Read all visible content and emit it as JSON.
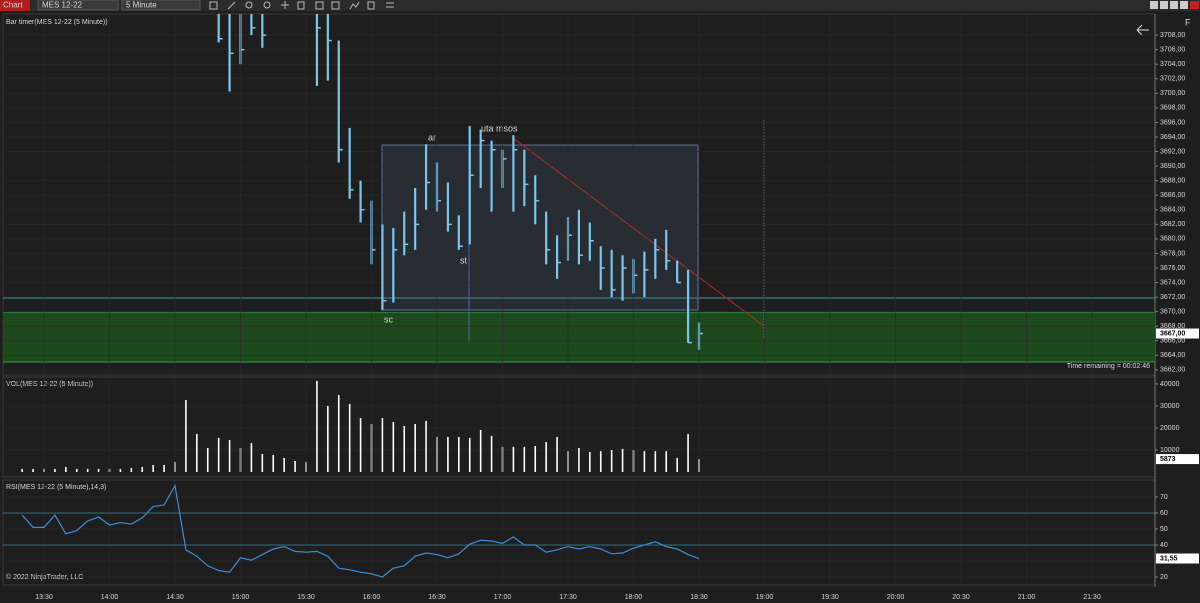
{
  "toolbar": {
    "title": "Chart",
    "instrument": "MES 12-22",
    "interval": "5 Minute",
    "corner": "F"
  },
  "footer": "© 2022 NinjaTrader, LLC",
  "chart_data": [
    {
      "type": "ohlc",
      "title": "Bar timer(MES 12-22 (5 Minute))",
      "timer": "Time remaining = 00:02:46",
      "annotations": [
        "ar",
        "st",
        "uta msos",
        "sc"
      ],
      "color": "#7cc6ee",
      "grid": true,
      "x": [
        "14:50",
        "14:55",
        "15:00",
        "15:05",
        "15:10",
        "15:35",
        "15:40",
        "15:45",
        "15:50",
        "15:55",
        "16:00",
        "16:05",
        "16:10",
        "16:15",
        "16:20",
        "16:25",
        "16:30",
        "16:35",
        "16:40",
        "16:45",
        "16:50",
        "16:55",
        "17:00",
        "17:05",
        "17:10",
        "17:15",
        "17:20",
        "17:25",
        "17:30",
        "17:35",
        "17:40",
        "17:45",
        "17:50",
        "17:55",
        "18:00",
        "18:05",
        "18:10",
        "18:15",
        "18:20",
        "18:25",
        "18:30"
      ],
      "high": [
        3711,
        3711,
        3711,
        3711,
        3711,
        3711,
        3711,
        3707.25,
        3695.25,
        3688,
        3685.25,
        3682,
        3681.5,
        3683.75,
        3687,
        3693,
        3690.5,
        3687.75,
        3683.25,
        3695.5,
        3695,
        3693.5,
        3692.25,
        3694.25,
        3692.25,
        3688.75,
        3683.75,
        3680.5,
        3683,
        3684,
        3682.25,
        3679,
        3678.5,
        3677.75,
        3677.25,
        3678.25,
        3680,
        3681.25,
        3677,
        3675.75,
        3668.5
      ],
      "low": [
        3707,
        3700.25,
        3704,
        3708,
        3706.25,
        3701,
        3701.75,
        3690.5,
        3685.5,
        3682.25,
        3676.5,
        3670.25,
        3671.25,
        3677.75,
        3678.5,
        3684,
        3683.75,
        3681,
        3678.5,
        3679.25,
        3687,
        3683.75,
        3687,
        3683.75,
        3684.5,
        3682,
        3676.5,
        3674.5,
        3677,
        3676.5,
        3677,
        3673,
        3672,
        3671.5,
        3672.5,
        3672,
        3674.5,
        3675.75,
        3674,
        3665.75,
        3664.75
      ],
      "close": [
        3707.5,
        3705.5,
        3706,
        3709,
        3708,
        3709,
        3707.25,
        3692.25,
        3686.75,
        3684,
        3678.5,
        3671.5,
        3678.5,
        3679.25,
        3682,
        3687.75,
        3685.25,
        3682,
        3679,
        3688.75,
        3693.5,
        3692.25,
        3691,
        3692.25,
        3687.5,
        3685.25,
        3678.5,
        3676.75,
        3680.5,
        3677.75,
        3679.75,
        3676,
        3673,
        3676,
        3675,
        3675.75,
        3678.5,
        3677,
        3674,
        3665.75,
        3667
      ],
      "current": {
        "value": 3667,
        "label": "3667,00"
      },
      "ylim": [
        3661.3,
        3710.9
      ],
      "yticks": [
        {
          "value": 3662,
          "label": "3662,00"
        },
        {
          "value": 3664,
          "label": "3664,00"
        },
        {
          "value": 3666,
          "label": "3666,00"
        },
        {
          "value": 3668,
          "label": "3668,00"
        },
        {
          "value": 3670,
          "label": "3670,00"
        },
        {
          "value": 3672,
          "label": "3672,00"
        },
        {
          "value": 3674,
          "label": "3674,00"
        },
        {
          "value": 3676,
          "label": "3676,00"
        },
        {
          "value": 3678,
          "label": "3678,00"
        },
        {
          "value": 3680,
          "label": "3680,00"
        },
        {
          "value": 3682,
          "label": "3682,00"
        },
        {
          "value": 3684,
          "label": "3684,00"
        },
        {
          "value": 3686,
          "label": "3686,00"
        },
        {
          "value": 3688,
          "label": "3688,00"
        },
        {
          "value": 3690,
          "label": "3690,00"
        },
        {
          "value": 3692,
          "label": "3692,00"
        },
        {
          "value": 3694,
          "label": "3694,00"
        },
        {
          "value": 3696,
          "label": "3696,00"
        },
        {
          "value": 3698,
          "label": "3698,00"
        },
        {
          "value": 3700,
          "label": "3700,00"
        },
        {
          "value": 3702,
          "label": "3702,00"
        },
        {
          "value": 3704,
          "label": "3704,00"
        },
        {
          "value": 3706,
          "label": "3706,00"
        },
        {
          "value": 3708,
          "label": "3708,00"
        }
      ]
    },
    {
      "type": "bar",
      "title": "VOL(MES 12-22 (5 Minute))",
      "color": "#ffffff",
      "grid": true,
      "x": [
        "13:20",
        "13:25",
        "13:30",
        "13:35",
        "13:40",
        "13:45",
        "13:50",
        "13:55",
        "14:00",
        "14:05",
        "14:10",
        "14:15",
        "14:20",
        "14:25",
        "14:30",
        "14:35",
        "14:40",
        "14:45",
        "14:50",
        "14:55",
        "15:00",
        "15:05",
        "15:10",
        "15:15",
        "15:20",
        "15:25",
        "15:30",
        "15:35",
        "15:40",
        "15:45",
        "15:50",
        "15:55",
        "16:00",
        "16:05",
        "16:10",
        "16:15",
        "16:20",
        "16:25",
        "16:30",
        "16:35",
        "16:40",
        "16:45",
        "16:50",
        "16:55",
        "17:00",
        "17:05",
        "17:10",
        "17:15",
        "17:20",
        "17:25",
        "17:30",
        "17:35",
        "17:40",
        "17:45",
        "17:50",
        "17:55",
        "18:00",
        "18:05",
        "18:10",
        "18:15",
        "18:20",
        "18:25",
        "18:30"
      ],
      "values": [
        1400,
        1400,
        1400,
        1400,
        2300,
        1400,
        1400,
        1400,
        1400,
        1400,
        1800,
        2300,
        3200,
        3200,
        4500,
        32700,
        17300,
        10900,
        15500,
        14500,
        10900,
        13200,
        8200,
        7700,
        6400,
        5000,
        4500,
        41400,
        30000,
        35000,
        30900,
        24500,
        21800,
        24500,
        22700,
        20900,
        21800,
        23200,
        15900,
        15900,
        15900,
        15500,
        19100,
        16400,
        11400,
        11400,
        11400,
        11800,
        13600,
        15900,
        9500,
        10900,
        9100,
        9500,
        10000,
        10500,
        10000,
        9500,
        9500,
        9500,
        6400,
        17300,
        5873
      ],
      "current": {
        "value": 5873,
        "label": "5873"
      },
      "ylim": [
        0,
        42700
      ],
      "yticks": [
        10000,
        20000,
        30000,
        40000
      ]
    },
    {
      "type": "line",
      "title": "RSI(MES 12-22 (5 Minute),14,3)",
      "color": "#3b8fd9",
      "grid": true,
      "x": [
        "13:20",
        "13:25",
        "13:30",
        "13:35",
        "13:40",
        "13:45",
        "13:50",
        "13:55",
        "14:00",
        "14:05",
        "14:10",
        "14:15",
        "14:20",
        "14:25",
        "14:30",
        "14:35",
        "14:40",
        "14:45",
        "14:50",
        "14:55",
        "15:00",
        "15:05",
        "15:10",
        "15:15",
        "15:20",
        "15:25",
        "15:30",
        "15:35",
        "15:40",
        "15:45",
        "15:50",
        "15:55",
        "16:00",
        "16:05",
        "16:10",
        "16:15",
        "16:20",
        "16:25",
        "16:30",
        "16:35",
        "16:40",
        "16:45",
        "16:50",
        "16:55",
        "17:00",
        "17:05",
        "17:10",
        "17:15",
        "17:20",
        "17:25",
        "17:30",
        "17:35",
        "17:40",
        "17:45",
        "17:50",
        "17:55",
        "18:00",
        "18:05",
        "18:10",
        "18:15",
        "18:20",
        "18:25",
        "18:30"
      ],
      "values": [
        58.7,
        51,
        51,
        58.7,
        47,
        49,
        55,
        57.5,
        52.5,
        54,
        53,
        57,
        64,
        65,
        77,
        37,
        33,
        27,
        24,
        23,
        32,
        30.5,
        34,
        37.5,
        39,
        36,
        35.5,
        36,
        33,
        25.5,
        24.5,
        23,
        22,
        20,
        25.5,
        27,
        33,
        35,
        34,
        32,
        34.5,
        40.5,
        43,
        42.5,
        41,
        45,
        40,
        40,
        35.5,
        37,
        39,
        37.5,
        39,
        37.5,
        34.5,
        35,
        38,
        40,
        42,
        39,
        37.5,
        34,
        31.55
      ],
      "levels": [
        60,
        40
      ],
      "current": {
        "value": 31.55,
        "label": "31,55"
      },
      "ylim": [
        15,
        80.6
      ],
      "yticks": [
        20,
        30,
        40,
        50,
        60,
        70
      ],
      "xticks": [
        "13:30",
        "14:00",
        "14:30",
        "15:00",
        "15:30",
        "16:00",
        "16:30",
        "17:00",
        "17:30",
        "18:00",
        "18:30",
        "19:00",
        "19:30",
        "20:00",
        "20:30",
        "21:00",
        "21:30"
      ]
    }
  ]
}
